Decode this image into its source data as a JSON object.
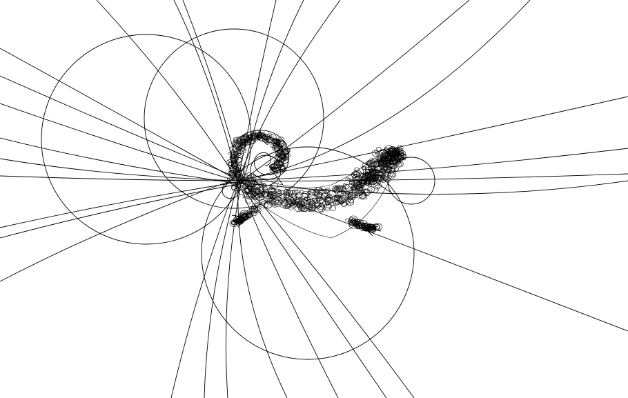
{
  "artwork": {
    "subject": "lizard-line-drawing",
    "background_color": "#ffffff",
    "line_color": "#000000",
    "elements": [
      "construction-circles",
      "construction-arcs",
      "lizard-scribble"
    ]
  }
}
